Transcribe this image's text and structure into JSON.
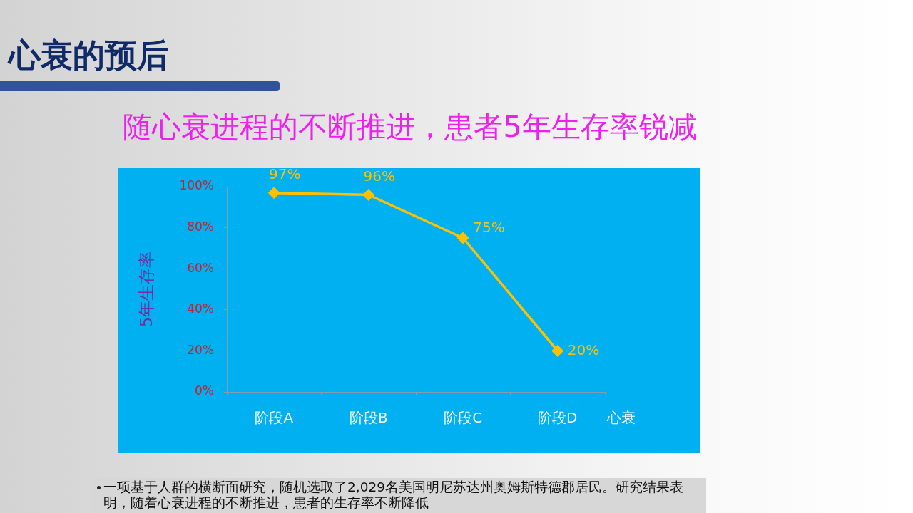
{
  "chart_data": {
    "type": "line",
    "title": "心衰的预后",
    "subtitle": "随心衰进程的不断推进，患者5年生存率锐减",
    "xlabel": "心衰",
    "ylabel": "5年生存率",
    "categories": [
      "阶段A",
      "阶段B",
      "阶段C",
      "阶段D"
    ],
    "values": [
      97,
      96,
      75,
      20
    ],
    "value_labels": [
      "97%",
      "96%",
      "75%",
      "20%"
    ],
    "color": "#ffc000",
    "marker": "diamond",
    "line_style": "solid",
    "ylim": [
      0,
      100
    ],
    "yticks": [
      {
        "value": 0,
        "label": "0%"
      },
      {
        "value": 20,
        "label": "20%"
      },
      {
        "value": 40,
        "label": "40%"
      },
      {
        "value": 60,
        "label": "60%"
      },
      {
        "value": 80,
        "label": "80%"
      },
      {
        "value": 100,
        "label": "100%"
      }
    ],
    "grid": false,
    "annotations": [
      "一项基于人群的横断面研究，随机选取了2,029名美国明尼苏达州奥姆斯特德郡居民。研究结果表明，随着心衰进程的不断推进，患者的生存率不断降低"
    ]
  }
}
